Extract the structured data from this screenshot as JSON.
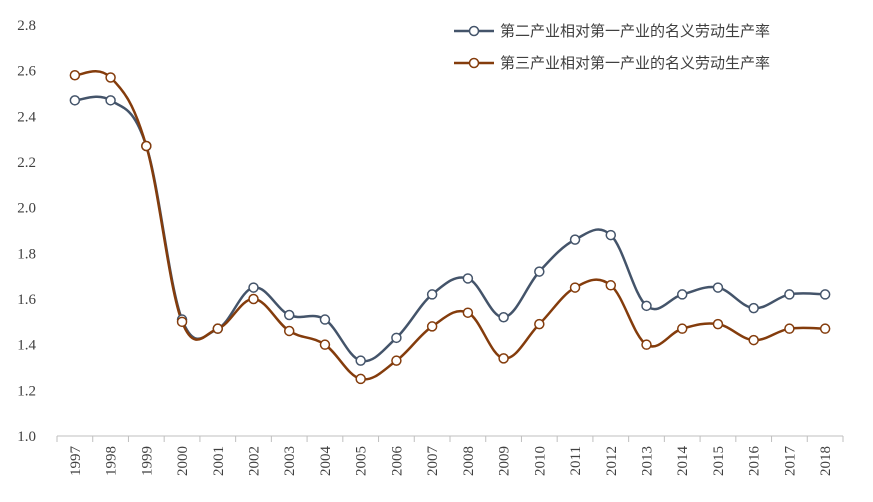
{
  "chart_data": {
    "type": "line",
    "title": "",
    "xlabel": "",
    "ylabel": "",
    "x": [
      "1997",
      "1998",
      "1999",
      "2000",
      "2001",
      "2002",
      "2003",
      "2004",
      "2005",
      "2006",
      "2007",
      "2008",
      "2009",
      "2010",
      "2011",
      "2012",
      "2013",
      "2014",
      "2015",
      "2016",
      "2017",
      "2018"
    ],
    "ylim": [
      1.0,
      2.8
    ],
    "yticks": [
      "1.0",
      "1.2",
      "1.4",
      "1.6",
      "1.8",
      "2.0",
      "2.2",
      "2.4",
      "2.6",
      "2.8"
    ],
    "grid": false,
    "smooth": true,
    "legend_position": "top-right",
    "series": [
      {
        "name": "第二产业相对第一产业的名义劳动生产率",
        "color": "#44546a",
        "values": [
          2.47,
          2.47,
          2.27,
          1.51,
          1.47,
          1.65,
          1.53,
          1.51,
          1.33,
          1.43,
          1.62,
          1.69,
          1.52,
          1.72,
          1.86,
          1.88,
          1.57,
          1.62,
          1.65,
          1.56,
          1.62,
          1.62
        ]
      },
      {
        "name": "第三产业相对第一产业的名义劳动生产率",
        "color": "#843c0c",
        "values": [
          2.58,
          2.57,
          2.27,
          1.5,
          1.47,
          1.6,
          1.46,
          1.4,
          1.25,
          1.33,
          1.48,
          1.54,
          1.34,
          1.49,
          1.65,
          1.66,
          1.4,
          1.47,
          1.49,
          1.42,
          1.47,
          1.47
        ]
      }
    ]
  }
}
